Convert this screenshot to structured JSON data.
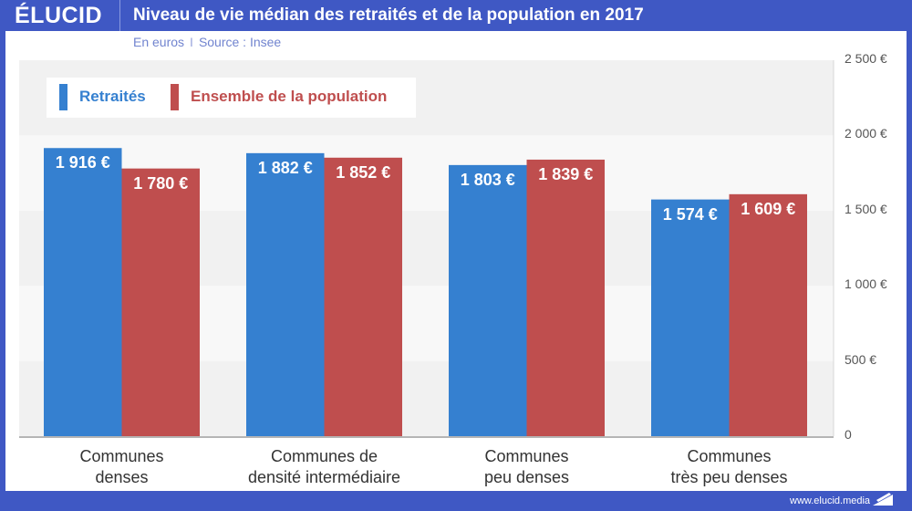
{
  "header": {
    "logo": "ÉLUCID",
    "title": "Niveau de vie médian des retraités et de la population en 2017"
  },
  "subtitle": {
    "unit": "En euros",
    "separator": "I",
    "source": "Source : Insee"
  },
  "footer": {
    "url": "www.elucid.media",
    "icon": "elucid-arrow-icon"
  },
  "colors": {
    "brand": "#3f58c4",
    "retraites": "#3580d0",
    "ensemble": "#bf4e4e",
    "band_dark": "#f1f1f1",
    "band_light": "#f8f8f8"
  },
  "chart_data": {
    "type": "bar",
    "title": "Niveau de vie médian des retraités et de la population en 2017",
    "subtitle": "En euros | Source : Insee",
    "xlabel": "",
    "ylabel": "",
    "ylim": [
      0,
      2500
    ],
    "yticks": [
      0,
      500,
      1000,
      1500,
      2000,
      2500
    ],
    "ytick_labels": [
      "0",
      "500 €",
      "1 000 €",
      "1 500 €",
      "2 000 €",
      "2 500 €"
    ],
    "y_axis_position": "right",
    "grid": "alternating horizontal bands",
    "legend_position": "top-left",
    "categories": [
      "Communes denses",
      "Communes de densité intermédiaire",
      "Communes peu denses",
      "Communes très peu denses"
    ],
    "category_lines": [
      [
        "Communes",
        "denses"
      ],
      [
        "Communes de",
        "densité intermédiaire"
      ],
      [
        "Communes",
        "peu denses"
      ],
      [
        "Communes",
        "très peu denses"
      ]
    ],
    "series": [
      {
        "name": "Retraités",
        "color": "#3580d0",
        "values": [
          1916,
          1882,
          1803,
          1574
        ],
        "labels": [
          "1 916 €",
          "1 882 €",
          "1 803 €",
          "1 574 €"
        ]
      },
      {
        "name": "Ensemble de la population",
        "color": "#bf4e4e",
        "values": [
          1780,
          1852,
          1839,
          1609
        ],
        "labels": [
          "1 780 €",
          "1 852 €",
          "1 839 €",
          "1 609 €"
        ]
      }
    ]
  }
}
